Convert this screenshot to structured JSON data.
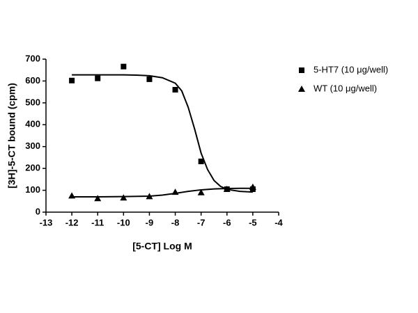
{
  "chart_data": {
    "type": "scatter",
    "x_label": "[5-CT] Log M",
    "y_label": "[3H]-5-CT bound (cpm)",
    "xlim": [
      -13,
      -4
    ],
    "xticks": [
      -13,
      -12,
      -11,
      -10,
      -9,
      -8,
      -7,
      -6,
      -5,
      -4
    ],
    "ylim": [
      0,
      700
    ],
    "yticks": [
      0,
      100,
      200,
      300,
      400,
      500,
      600,
      700
    ],
    "legend": "upper right",
    "series": [
      {
        "name": "5-HT7 (10 μg/well)",
        "color": "#000000",
        "marker": "square",
        "x": [
          -12,
          -11,
          -10,
          -9,
          -8,
          -7,
          -6,
          -5
        ],
        "values": [
          602,
          612,
          666,
          608,
          560,
          232,
          105,
          105
        ],
        "fit_x": [
          -12,
          -11.5,
          -11,
          -10.5,
          -10,
          -9.5,
          -9,
          -8.5,
          -8,
          -7.75,
          -7.5,
          -7.25,
          -7,
          -6.75,
          -6.5,
          -6.25,
          -6,
          -5.5,
          -5
        ],
        "fit_values": [
          628,
          628,
          628,
          628,
          628,
          627,
          624,
          615,
          590,
          555,
          480,
          380,
          270,
          195,
          145,
          118,
          104,
          95,
          92
        ]
      },
      {
        "name": "WT (10 μg/well)",
        "color": "#000000",
        "marker": "triangle",
        "x": [
          -12,
          -11,
          -10,
          -9,
          -8,
          -7,
          -6,
          -5
        ],
        "values": [
          75,
          63,
          66,
          72,
          92,
          90,
          105,
          115
        ],
        "fit_x": [
          -12,
          -11,
          -10,
          -9,
          -8.5,
          -8,
          -7.5,
          -7,
          -6.5,
          -6,
          -5.5,
          -5
        ],
        "fit_values": [
          70,
          70,
          71,
          73,
          78,
          86,
          95,
          102,
          106,
          108,
          109,
          109
        ]
      }
    ]
  }
}
